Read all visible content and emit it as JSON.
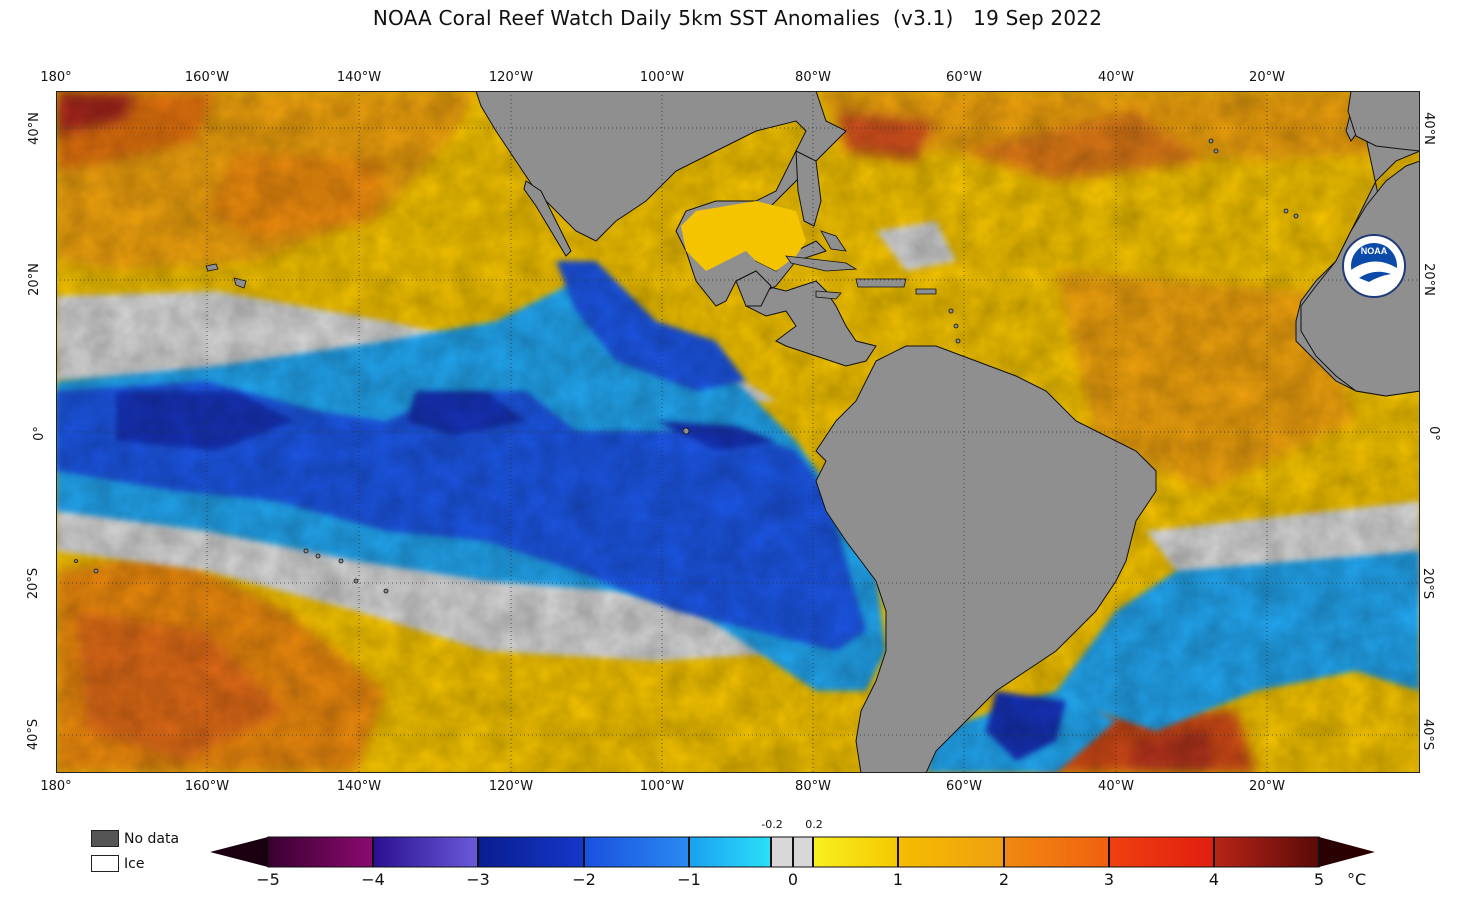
{
  "title": "NOAA Coral Reef Watch Daily 5km SST Anomalies  (v3.1)   19 Sep 2022",
  "map": {
    "lon_labels": [
      "180°",
      "160°W",
      "140°W",
      "120°W",
      "100°W",
      "80°W",
      "60°W",
      "40°W",
      "20°W"
    ],
    "lat_labels": [
      "40°N",
      "20°N",
      "0°",
      "20°S",
      "40°S"
    ],
    "colors": {
      "land": "#8f8f8f",
      "ocean_warm": "#f5c400",
      "ocean_hot": "#ee8a10",
      "ocean_very_hot": "#c8321a",
      "ocean_neutral": "#d8d8d8",
      "ocean_cool": "#22a6f0",
      "ocean_cold": "#1c56e6",
      "ocean_very_cold": "#1432b8"
    }
  },
  "legend": {
    "no_data_label": "No data",
    "ice_label": "Ice",
    "no_data_color": "#555555",
    "ice_color": "#ffffff"
  },
  "colorbar": {
    "ticks": [
      "−5",
      "−4",
      "−3",
      "−2",
      "−1",
      "0",
      "1",
      "2",
      "3",
      "4",
      "5"
    ],
    "small_ticks": [
      "-0.2",
      "0.2"
    ],
    "unit": "°C",
    "min": -5,
    "max": 5
  },
  "logo": {
    "text": "NOAA"
  }
}
